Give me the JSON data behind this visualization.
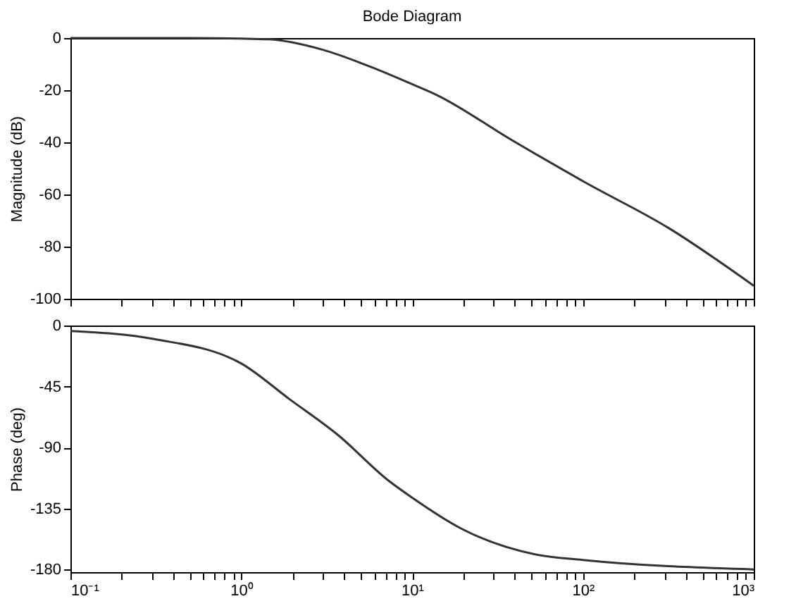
{
  "chart_data": [
    {
      "type": "line",
      "title": "Bode Diagram",
      "ylabel": "Magnitude (dB)",
      "log": "x",
      "grid": false,
      "tick_labels": "y",
      "marker": "none",
      "line_style": "solid",
      "x": [
        0.1,
        0.5,
        1,
        1.45,
        3,
        5.9,
        10,
        14,
        38,
        102,
        320,
        1000
      ],
      "series": [
        {
          "color": "#333333",
          "values": [
            0,
            0,
            -0.2,
            -0.5,
            -4.5,
            -11.4,
            -17.7,
            -21.9,
            -39,
            -55.2,
            -73,
            -95
          ]
        }
      ],
      "xlim": [
        0.1,
        1000
      ],
      "ylim": [
        -100,
        0
      ],
      "yticks": [
        -100,
        -80,
        -60,
        -40,
        -20,
        0
      ],
      "xticks": [
        {
          "value": 0.1,
          "label": null
        },
        {
          "value": 0.2,
          "label": null
        },
        {
          "value": 0.3,
          "label": null
        },
        {
          "value": 0.4,
          "label": null
        },
        {
          "value": 0.5,
          "label": null
        },
        {
          "value": 0.6,
          "label": null
        },
        {
          "value": 0.7,
          "label": null
        },
        {
          "value": 0.8,
          "label": null
        },
        {
          "value": 0.9,
          "label": null
        },
        {
          "value": 1,
          "label": null
        },
        {
          "value": 2,
          "label": null
        },
        {
          "value": 3,
          "label": null
        },
        {
          "value": 4,
          "label": null
        },
        {
          "value": 5,
          "label": null
        },
        {
          "value": 6,
          "label": null
        },
        {
          "value": 7,
          "label": null
        },
        {
          "value": 8,
          "label": null
        },
        {
          "value": 9,
          "label": null
        },
        {
          "value": 10,
          "label": null
        },
        {
          "value": 20,
          "label": null
        },
        {
          "value": 30,
          "label": null
        },
        {
          "value": 40,
          "label": null
        },
        {
          "value": 50,
          "label": null
        },
        {
          "value": 60,
          "label": null
        },
        {
          "value": 70,
          "label": null
        },
        {
          "value": 80,
          "label": null
        },
        {
          "value": 90,
          "label": null
        },
        {
          "value": 100,
          "label": null
        },
        {
          "value": 200,
          "label": null
        },
        {
          "value": 300,
          "label": null
        },
        {
          "value": 400,
          "label": null
        },
        {
          "value": 500,
          "label": null
        },
        {
          "value": 600,
          "label": null
        },
        {
          "value": 700,
          "label": null
        },
        {
          "value": 800,
          "label": null
        },
        {
          "value": 900,
          "label": null
        },
        {
          "value": 1000,
          "label": null
        }
      ]
    },
    {
      "type": "line",
      "ylabel": "Phase (deg)",
      "log": "x",
      "grid": false,
      "marker": "none",
      "line_style": "solid",
      "x": [
        0.1,
        0.31,
        1,
        1.9,
        3.7,
        7.2,
        10,
        19.5,
        53,
        100,
        1000
      ],
      "series": [
        {
          "color": "#333333",
          "values": [
            -4,
            -10,
            -28,
            -54,
            -81,
            -114,
            -127,
            -150,
            -169,
            -173,
            -180
          ]
        }
      ],
      "xlim": [
        0.1,
        1000
      ],
      "ylim": [
        -182,
        0
      ],
      "yticks": [
        -180,
        -135,
        -90,
        -45,
        0
      ],
      "xticks": [
        {
          "value": 0.1,
          "label": "10⁻¹"
        },
        {
          "value": 0.2,
          "label": null
        },
        {
          "value": 0.3,
          "label": null
        },
        {
          "value": 0.4,
          "label": null
        },
        {
          "value": 0.5,
          "label": null
        },
        {
          "value": 0.6,
          "label": null
        },
        {
          "value": 0.7,
          "label": null
        },
        {
          "value": 0.8,
          "label": null
        },
        {
          "value": 0.9,
          "label": null
        },
        {
          "value": 1,
          "label": "10⁰"
        },
        {
          "value": 2,
          "label": null
        },
        {
          "value": 3,
          "label": null
        },
        {
          "value": 4,
          "label": null
        },
        {
          "value": 5,
          "label": null
        },
        {
          "value": 6,
          "label": null
        },
        {
          "value": 7,
          "label": null
        },
        {
          "value": 8,
          "label": null
        },
        {
          "value": 9,
          "label": null
        },
        {
          "value": 10,
          "label": "10¹"
        },
        {
          "value": 20,
          "label": null
        },
        {
          "value": 30,
          "label": null
        },
        {
          "value": 40,
          "label": null
        },
        {
          "value": 50,
          "label": null
        },
        {
          "value": 60,
          "label": null
        },
        {
          "value": 70,
          "label": null
        },
        {
          "value": 80,
          "label": null
        },
        {
          "value": 90,
          "label": null
        },
        {
          "value": 100,
          "label": "10²"
        },
        {
          "value": 200,
          "label": null
        },
        {
          "value": 300,
          "label": null
        },
        {
          "value": 400,
          "label": null
        },
        {
          "value": 500,
          "label": null
        },
        {
          "value": 600,
          "label": null
        },
        {
          "value": 700,
          "label": null
        },
        {
          "value": 800,
          "label": null
        },
        {
          "value": 900,
          "label": null
        },
        {
          "value": 1000,
          "label": "10³"
        }
      ]
    }
  ]
}
